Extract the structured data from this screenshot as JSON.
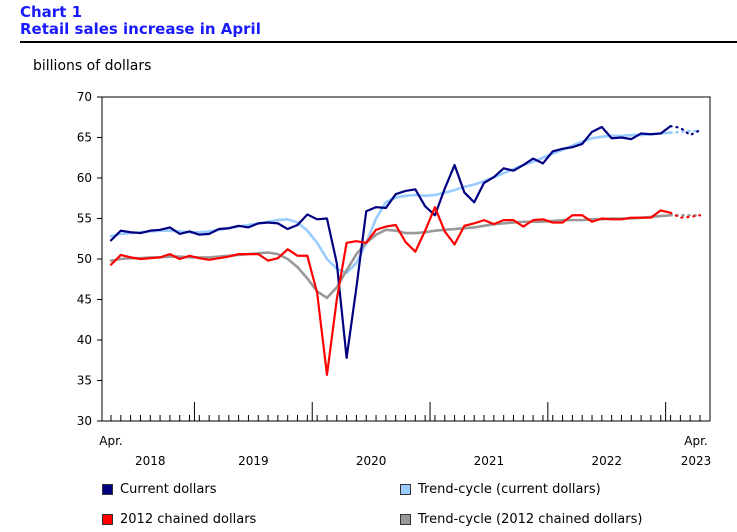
{
  "header": {
    "chart_number": "Chart 1",
    "title": "Retail sales increase in April"
  },
  "chart_data": {
    "type": "line",
    "title": "Retail sales increase in April",
    "ylabel": "billions of dollars",
    "xlabel": "",
    "ylim": [
      30,
      70
    ],
    "yticks": [
      30,
      35,
      40,
      45,
      50,
      55,
      60,
      65,
      70
    ],
    "x_start_label": "Apr.",
    "x_end_label": "Apr.",
    "year_labels": [
      "2018",
      "2019",
      "2020",
      "2021",
      "2022",
      "2023"
    ],
    "x": [
      "2018-04",
      "2018-05",
      "2018-06",
      "2018-07",
      "2018-08",
      "2018-09",
      "2018-10",
      "2018-11",
      "2018-12",
      "2019-01",
      "2019-02",
      "2019-03",
      "2019-04",
      "2019-05",
      "2019-06",
      "2019-07",
      "2019-08",
      "2019-09",
      "2019-10",
      "2019-11",
      "2019-12",
      "2020-01",
      "2020-02",
      "2020-03",
      "2020-04",
      "2020-05",
      "2020-06",
      "2020-07",
      "2020-08",
      "2020-09",
      "2020-10",
      "2020-11",
      "2020-12",
      "2021-01",
      "2021-02",
      "2021-03",
      "2021-04",
      "2021-05",
      "2021-06",
      "2021-07",
      "2021-08",
      "2021-09",
      "2021-10",
      "2021-11",
      "2021-12",
      "2022-01",
      "2022-02",
      "2022-03",
      "2022-04",
      "2022-05",
      "2022-06",
      "2022-07",
      "2022-08",
      "2022-09",
      "2022-10",
      "2022-11",
      "2022-12",
      "2023-01",
      "2023-02",
      "2023-03",
      "2023-04"
    ],
    "grid": false,
    "legend_position": "bottom",
    "series": [
      {
        "name": "Current dollars",
        "color": "#000080",
        "values": [
          52.3,
          53.5,
          53.3,
          53.2,
          53.5,
          53.6,
          53.9,
          53.1,
          53.4,
          53.0,
          53.1,
          53.7,
          53.8,
          54.1,
          53.9,
          54.4,
          54.5,
          54.4,
          53.7,
          54.2,
          55.5,
          54.9,
          55.0,
          49.5,
          37.8,
          46.5,
          55.9,
          56.4,
          56.3,
          58.0,
          58.4,
          58.6,
          56.5,
          55.4,
          58.7,
          61.6,
          58.2,
          57.0,
          59.4,
          60.1,
          61.2,
          60.9,
          61.6,
          62.4,
          61.8,
          63.3,
          63.6,
          63.8,
          64.2,
          65.7,
          66.3,
          64.9,
          65.0,
          64.8,
          65.5,
          65.4,
          65.5,
          66.4,
          66.2,
          65.3,
          65.9
        ],
        "dotted_last": 3
      },
      {
        "name": "Trend-cycle (current dollars)",
        "color": "#99ccff",
        "values": [
          52.8,
          53.1,
          53.2,
          53.3,
          53.4,
          53.5,
          53.5,
          53.4,
          53.3,
          53.3,
          53.4,
          53.6,
          53.8,
          54.0,
          54.2,
          54.4,
          54.6,
          54.8,
          54.9,
          54.5,
          53.5,
          52.0,
          50.0,
          48.8,
          48.3,
          49.5,
          52.0,
          55.0,
          57.0,
          57.6,
          57.8,
          57.9,
          57.8,
          57.9,
          58.2,
          58.5,
          58.9,
          59.2,
          59.6,
          60.1,
          60.6,
          61.1,
          61.6,
          62.0,
          62.5,
          63.0,
          63.5,
          64.0,
          64.5,
          64.9,
          65.1,
          65.2,
          65.2,
          65.3,
          65.3,
          65.4,
          65.5,
          65.6,
          65.7,
          65.8,
          65.8
        ],
        "dotted_last": 3
      },
      {
        "name": "2012 chained dollars",
        "color": "#ff0000",
        "values": [
          49.3,
          50.5,
          50.2,
          50.0,
          50.1,
          50.2,
          50.6,
          50.0,
          50.4,
          50.1,
          49.9,
          50.1,
          50.3,
          50.6,
          50.6,
          50.6,
          49.8,
          50.1,
          51.2,
          50.4,
          50.4,
          45.8,
          35.7,
          45.0,
          52.0,
          52.2,
          52.0,
          53.6,
          54.0,
          54.2,
          52.1,
          50.9,
          53.5,
          56.4,
          53.4,
          51.8,
          54.1,
          54.4,
          54.8,
          54.3,
          54.8,
          54.8,
          54.0,
          54.8,
          54.9,
          54.5,
          54.5,
          55.4,
          55.4,
          54.6,
          55.0,
          54.9,
          54.9,
          55.1,
          55.1,
          55.1,
          56.0,
          55.7,
          55.1,
          55.2,
          55.4
        ],
        "dotted_last": 3
      },
      {
        "name": "Trend-cycle (2012 chained dollars)",
        "color": "#999999",
        "values": [
          49.8,
          50.0,
          50.1,
          50.1,
          50.2,
          50.2,
          50.3,
          50.3,
          50.2,
          50.2,
          50.2,
          50.3,
          50.4,
          50.5,
          50.6,
          50.7,
          50.8,
          50.6,
          50.0,
          49.0,
          47.6,
          46.0,
          45.2,
          46.5,
          48.6,
          50.6,
          52.0,
          53.0,
          53.6,
          53.5,
          53.2,
          53.2,
          53.3,
          53.5,
          53.6,
          53.7,
          53.8,
          53.9,
          54.1,
          54.3,
          54.4,
          54.5,
          54.6,
          54.6,
          54.6,
          54.7,
          54.8,
          54.8,
          54.8,
          54.9,
          54.9,
          55.0,
          55.0,
          55.0,
          55.1,
          55.2,
          55.3,
          55.4,
          55.4,
          55.4,
          55.4
        ],
        "dotted_last": 3
      }
    ]
  }
}
